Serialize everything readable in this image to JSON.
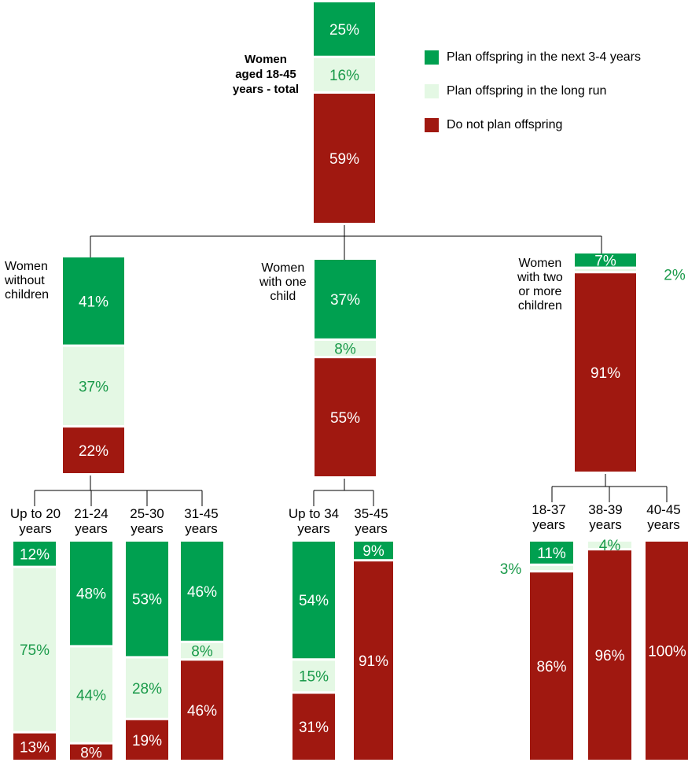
{
  "colors": {
    "plan_near": "#00A050",
    "plan_long": "#E4F8E4",
    "no_plan": "#A01810",
    "connector": "#000000"
  },
  "title": "Women\naged 18-45\nyears - total",
  "legend": [
    {
      "label": "Plan offspring in the next 3-4 years",
      "color": "#00A050"
    },
    {
      "label": "Plan offspring in the long run",
      "color": "#E4F8E4"
    },
    {
      "label": "Do not plan offspring",
      "color": "#A01810"
    }
  ],
  "chart_data": {
    "type": "bar",
    "stacked": true,
    "percent_scale": true,
    "series_names": [
      "Plan offspring in the next 3-4 years",
      "Plan offspring in the long run",
      "Do not plan offspring"
    ],
    "bars": [
      {
        "id": "total",
        "label": "Women\naged 18-45\nyears - total",
        "values": [
          25,
          16,
          59
        ],
        "labels": [
          "25%",
          "16%",
          "59%"
        ]
      },
      {
        "id": "no_children",
        "label": "Women\nwithout\nchildren",
        "values": [
          41,
          37,
          22
        ],
        "labels": [
          "41%",
          "37%",
          "22%"
        ]
      },
      {
        "id": "one_child",
        "label": "Women\nwith one\nchild",
        "values": [
          37,
          8,
          55
        ],
        "labels": [
          "37%",
          "8%",
          "55%"
        ]
      },
      {
        "id": "two_plus",
        "label": "Women\nwith two\nor more\nchildren",
        "values": [
          7,
          2,
          91
        ],
        "labels": [
          "7%",
          "2%",
          "91%"
        ]
      },
      {
        "id": "nc_upto20",
        "label": "Up to 20\nyears",
        "values": [
          12,
          75,
          13
        ],
        "labels": [
          "12%",
          "75%",
          "13%"
        ]
      },
      {
        "id": "nc_21_24",
        "label": "21-24\nyears",
        "values": [
          48,
          44,
          8
        ],
        "labels": [
          "48%",
          "44%",
          "8%"
        ]
      },
      {
        "id": "nc_25_30",
        "label": "25-30\nyears",
        "values": [
          53,
          28,
          19
        ],
        "labels": [
          "53%",
          "28%",
          "19%"
        ]
      },
      {
        "id": "nc_31_45",
        "label": "31-45\nyears",
        "values": [
          46,
          8,
          46
        ],
        "labels": [
          "46%",
          "8%",
          "46%"
        ]
      },
      {
        "id": "oc_upto34",
        "label": "Up to 34\nyears",
        "values": [
          54,
          15,
          31
        ],
        "labels": [
          "54%",
          "15%",
          "31%"
        ]
      },
      {
        "id": "oc_35_45",
        "label": "35-45\nyears",
        "values": [
          9,
          0,
          91
        ],
        "labels": [
          "9%",
          "",
          "91%"
        ]
      },
      {
        "id": "tp_18_37",
        "label": "18-37\nyears",
        "values": [
          11,
          3,
          86
        ],
        "labels": [
          "11%",
          "3%",
          "86%"
        ]
      },
      {
        "id": "tp_38_39",
        "label": "38-39\nyears",
        "values": [
          0,
          4,
          96
        ],
        "labels": [
          "",
          "4%",
          "96%"
        ]
      },
      {
        "id": "tp_40_45",
        "label": "40-45\nyears",
        "values": [
          0,
          0,
          100
        ],
        "labels": [
          "",
          "",
          "100%"
        ]
      }
    ]
  }
}
